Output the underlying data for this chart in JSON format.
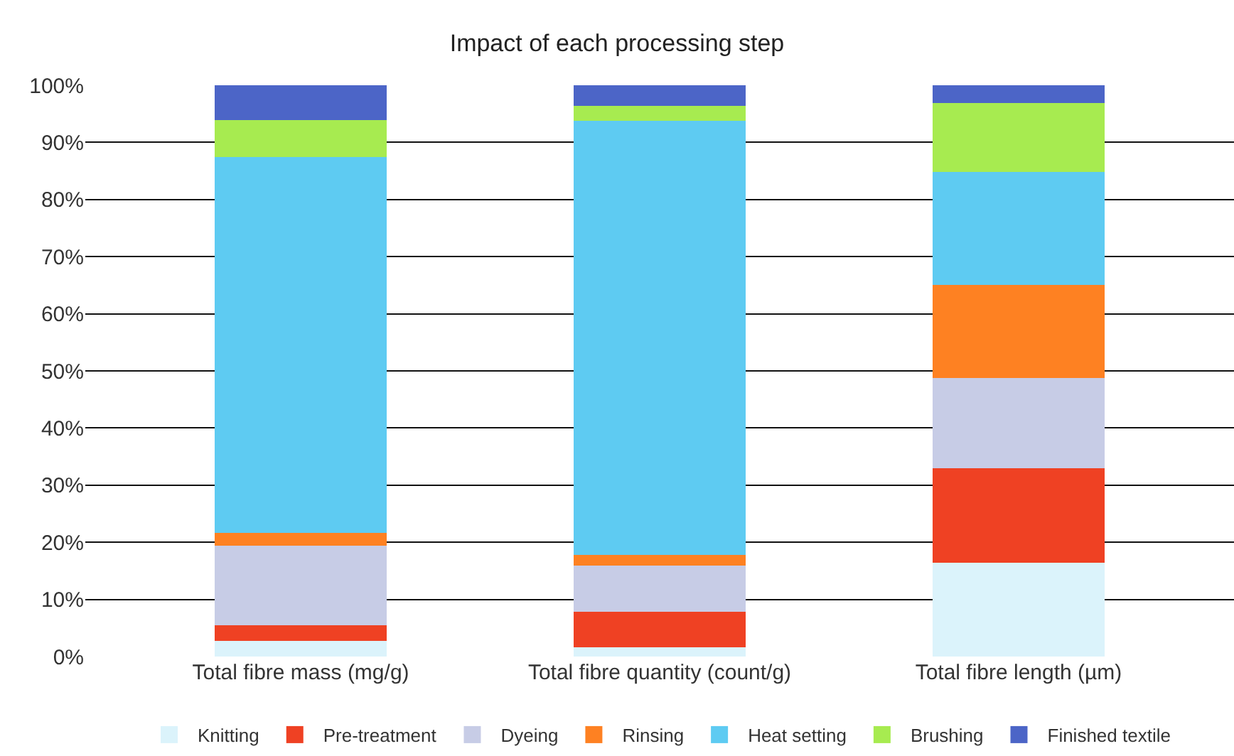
{
  "chart_data": {
    "type": "bar",
    "title": "Impact of each processing step",
    "stacked": true,
    "categories": [
      "Total fibre mass (mg/g)",
      "Total fibre quantity (count/g)",
      "Total fibre length (µm)"
    ],
    "series": [
      {
        "name": "Knitting",
        "color": "#dbf3fb",
        "values": [
          2.7,
          1.6,
          16.4
        ]
      },
      {
        "name": "Pre-treatment",
        "color": "#ef4123",
        "values": [
          2.8,
          6.2,
          16.5
        ]
      },
      {
        "name": "Dyeing",
        "color": "#c7cce6",
        "values": [
          13.9,
          8.1,
          15.8
        ]
      },
      {
        "name": "Rinsing",
        "color": "#fe8122",
        "values": [
          2.2,
          1.9,
          16.3
        ]
      },
      {
        "name": "Heat setting",
        "color": "#5ecbf2",
        "values": [
          65.8,
          76.0,
          19.8
        ]
      },
      {
        "name": "Brushing",
        "color": "#a7eb50",
        "values": [
          6.5,
          2.6,
          12.1
        ]
      },
      {
        "name": "Finished textile",
        "color": "#4c65c7",
        "values": [
          6.1,
          3.6,
          3.1
        ]
      }
    ],
    "ylim": [
      0,
      100
    ],
    "yticks": [
      {
        "value": 0,
        "label": "0%"
      },
      {
        "value": 10,
        "label": "10%"
      },
      {
        "value": 20,
        "label": "20%"
      },
      {
        "value": 30,
        "label": "30%"
      },
      {
        "value": 40,
        "label": "40%"
      },
      {
        "value": 50,
        "label": "50%"
      },
      {
        "value": 60,
        "label": "60%"
      },
      {
        "value": 70,
        "label": "70%"
      },
      {
        "value": 80,
        "label": "80%"
      },
      {
        "value": 90,
        "label": "90%"
      },
      {
        "value": 100,
        "label": "100%"
      }
    ],
    "grid": "y",
    "legend": "bottom"
  }
}
